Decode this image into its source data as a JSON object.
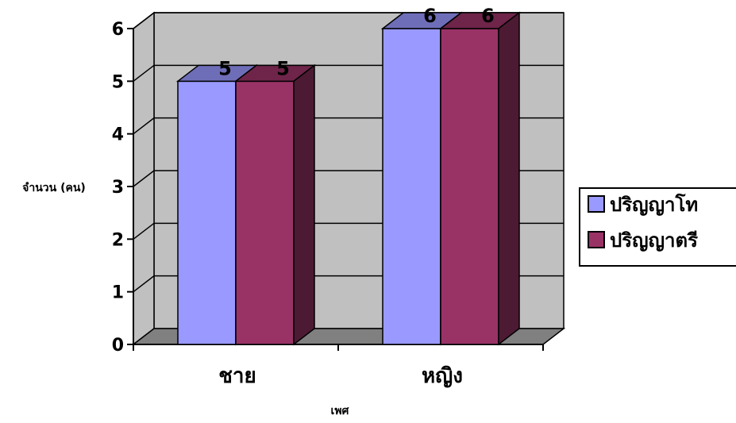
{
  "chart_data": {
    "type": "bar",
    "categories": [
      "ชาย",
      "หญิง"
    ],
    "series": [
      {
        "name": "ปริญญาโท",
        "values": [
          5,
          6
        ],
        "color": "#9999ff"
      },
      {
        "name": "ปริญญาตรี",
        "values": [
          5,
          6
        ],
        "color": "#993366"
      }
    ],
    "xlabel": "เพศ",
    "ylabel": "จำนวน (คน)",
    "ylim": [
      0,
      6
    ],
    "yticks": [
      0,
      1,
      2,
      3,
      4,
      5,
      6
    ],
    "grid": true,
    "legend": "right",
    "wall_color": "#c0c0c0",
    "floor_color": "#808080",
    "style": "3d-clustered-column"
  }
}
